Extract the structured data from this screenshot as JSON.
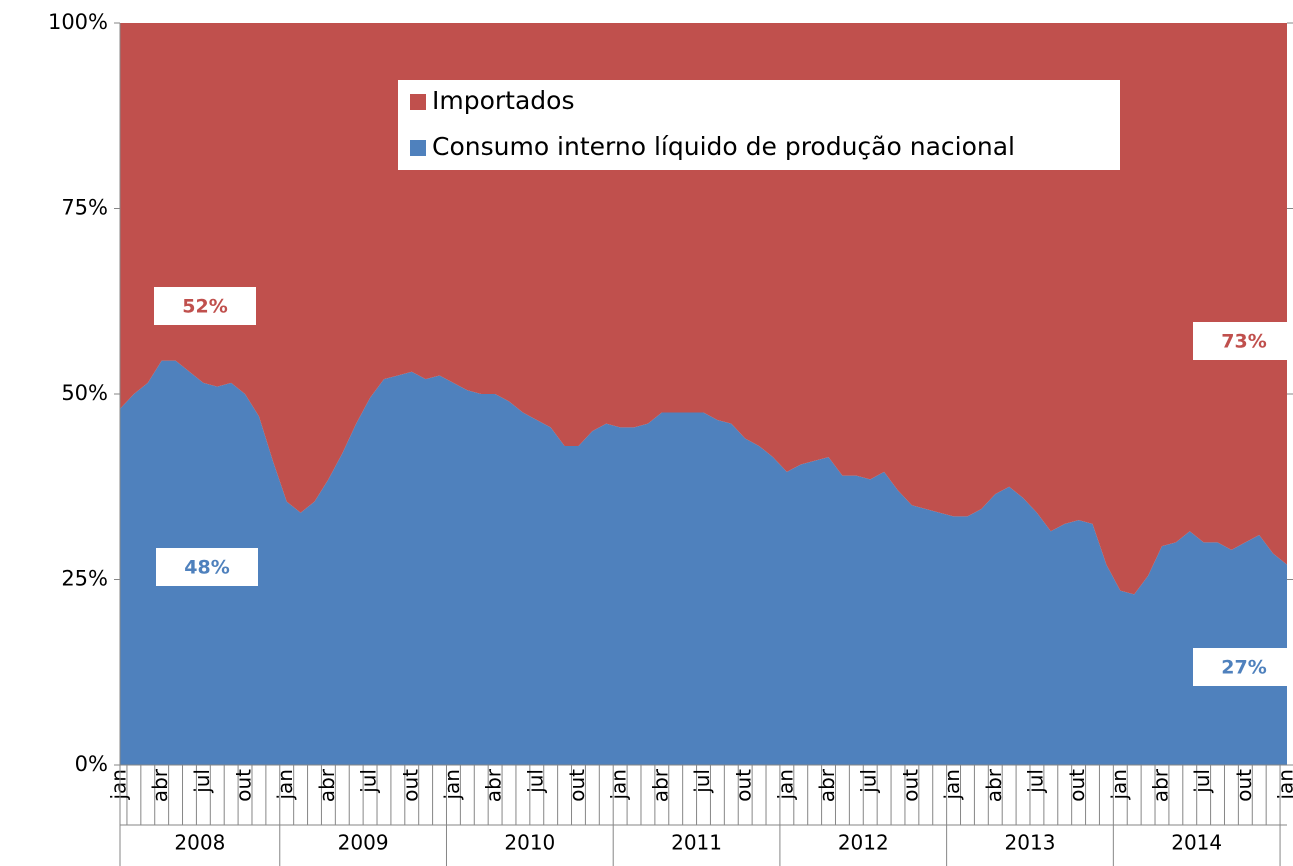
{
  "chart_data": {
    "type": "stacked_area_100",
    "categories": [
      "jan",
      null,
      null,
      "abr",
      null,
      null,
      "jul",
      null,
      null,
      "out",
      null,
      null,
      "jan",
      null,
      null,
      "abr",
      null,
      null,
      "jul",
      null,
      null,
      "out",
      null,
      null,
      "jan",
      null,
      null,
      "abr",
      null,
      null,
      "jul",
      null,
      null,
      "out",
      null,
      null,
      "jan",
      null,
      null,
      "abr",
      null,
      null,
      "jul",
      null,
      null,
      "out",
      null,
      null,
      "jan",
      null,
      null,
      "abr",
      null,
      null,
      "jul",
      null,
      null,
      "out",
      null,
      null,
      "jan",
      null,
      null,
      "abr",
      null,
      null,
      "jul",
      null,
      null,
      "out",
      null,
      null,
      "jan",
      null,
      null,
      "abr",
      null,
      null,
      "jul",
      null,
      null,
      "out",
      null,
      null,
      "jan"
    ],
    "year_groups": [
      "2008",
      "2009",
      "2010",
      "2011",
      "2012",
      "2013",
      "2014"
    ],
    "series": [
      {
        "name": "Consumo interno líquido de produção nacional",
        "color": "#4f81bd",
        "values": [
          48,
          50,
          51.5,
          54.5,
          54.5,
          53,
          51.5,
          51,
          51.5,
          50,
          47,
          41,
          35.5,
          34,
          35.5,
          38.5,
          42,
          46,
          49.5,
          52,
          52.5,
          53,
          52,
          52.5,
          51.5,
          50.5,
          50,
          50,
          49,
          47.5,
          46.5,
          45.5,
          43,
          43,
          45,
          46,
          45.5,
          45.5,
          46,
          47.5,
          47.5,
          47.5,
          47.5,
          46.5,
          46,
          44,
          43,
          41.5,
          39.5,
          40.5,
          41,
          41.5,
          39,
          39,
          38.5,
          39.5,
          37,
          35,
          34.5,
          34,
          33.5,
          33.5,
          34.5,
          36.5,
          37.5,
          36,
          34,
          31.5,
          32.5,
          33,
          32.5,
          27,
          23.5,
          23,
          25.5,
          29.5,
          30,
          31.5,
          30,
          30,
          29,
          30,
          31,
          28.5,
          27
        ],
        "value_labels": [
          "48%",
          null,
          null,
          null,
          null,
          null,
          null,
          null,
          null,
          null,
          null,
          null,
          null,
          null,
          null,
          null,
          null,
          null,
          null,
          null,
          null,
          null,
          null,
          null,
          null,
          null,
          null,
          null,
          null,
          null,
          null,
          null,
          null,
          null,
          null,
          null,
          null,
          null,
          null,
          null,
          null,
          null,
          null,
          null,
          null,
          null,
          null,
          null,
          null,
          null,
          null,
          null,
          null,
          null,
          null,
          null,
          null,
          null,
          null,
          null,
          null,
          null,
          null,
          null,
          null,
          null,
          null,
          null,
          null,
          null,
          null,
          null,
          null,
          null,
          null,
          null,
          null,
          null,
          null,
          null,
          null,
          null,
          null,
          null,
          "27%"
        ]
      },
      {
        "name": "Importados",
        "color": "#c0504d",
        "values": [
          52,
          50,
          48.5,
          45.5,
          45.5,
          47,
          48.5,
          49,
          48.5,
          50,
          53,
          59,
          64.5,
          66,
          64.5,
          61.5,
          58,
          54,
          50.5,
          48,
          47.5,
          47,
          48,
          47.5,
          48.5,
          49.5,
          50,
          50,
          51,
          52.5,
          53.5,
          54.5,
          57,
          57,
          55,
          54,
          54.5,
          54.5,
          54,
          52.5,
          52.5,
          52.5,
          52.5,
          53.5,
          54,
          56,
          57,
          58.5,
          60.5,
          59.5,
          59,
          58.5,
          61,
          61,
          61.5,
          60.5,
          63,
          65,
          65.5,
          66,
          66.5,
          66.5,
          65.5,
          63.5,
          62.5,
          64,
          66,
          68.5,
          67.5,
          67,
          67.5,
          73,
          76.5,
          77,
          74.5,
          70.5,
          70,
          68.5,
          70,
          70,
          71,
          70,
          69,
          71.5,
          73
        ],
        "value_labels": [
          "52%",
          null,
          null,
          null,
          null,
          null,
          null,
          null,
          null,
          null,
          null,
          null,
          null,
          null,
          null,
          null,
          null,
          null,
          null,
          null,
          null,
          null,
          null,
          null,
          null,
          null,
          null,
          null,
          null,
          null,
          null,
          null,
          null,
          null,
          null,
          null,
          null,
          null,
          null,
          null,
          null,
          null,
          null,
          null,
          null,
          null,
          null,
          null,
          null,
          null,
          null,
          null,
          null,
          null,
          null,
          null,
          null,
          null,
          null,
          null,
          null,
          null,
          null,
          null,
          null,
          null,
          null,
          null,
          null,
          null,
          null,
          null,
          null,
          null,
          null,
          null,
          null,
          null,
          null,
          null,
          null,
          null,
          null,
          null,
          "73%"
        ]
      }
    ],
    "ylim": [
      0,
      100
    ],
    "yticks": [
      {
        "value": 0,
        "label": "0%"
      },
      {
        "value": 25,
        "label": "25%"
      },
      {
        "value": 50,
        "label": "50%"
      },
      {
        "value": 75,
        "label": "75%"
      },
      {
        "value": 100,
        "label": "100%"
      }
    ],
    "legend": "top-center"
  }
}
